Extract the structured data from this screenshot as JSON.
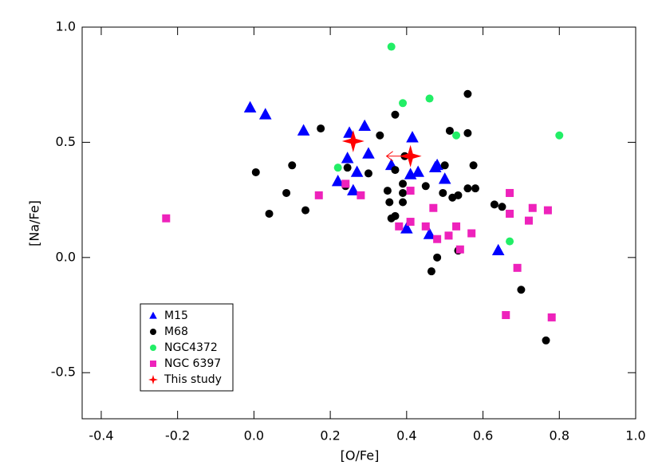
{
  "chart_data": {
    "type": "scatter",
    "x_label": "[O/Fe]",
    "y_label": "[Na/Fe]",
    "xlim": [
      -0.45,
      1.0
    ],
    "ylim": [
      -0.7,
      1.0
    ],
    "xticks": [
      -0.4,
      -0.2,
      {
        "value": 0,
        "label": "0.0"
      },
      0.2,
      0.4,
      0.6,
      0.8,
      {
        "value": 1,
        "label": "1.0"
      }
    ],
    "yticks": [
      -0.5,
      {
        "value": 0,
        "label": "0.0"
      },
      0.5,
      {
        "value": 1,
        "label": "1.0"
      }
    ],
    "legend": "lower-left",
    "series": [
      {
        "name": "M15",
        "color": "#0000ff",
        "marker": "triangle",
        "x": [
          -0.01,
          0.03,
          0.13,
          0.25,
          0.29,
          0.3,
          0.245,
          0.27,
          0.22,
          0.26,
          0.415,
          0.43,
          0.41,
          0.36,
          0.475,
          0.48,
          0.5,
          0.4,
          0.46,
          0.64
        ],
        "values": [
          0.65,
          0.62,
          0.55,
          0.54,
          0.57,
          0.45,
          0.43,
          0.37,
          0.33,
          0.29,
          0.52,
          0.37,
          0.36,
          0.4,
          0.39,
          0.4,
          0.34,
          0.125,
          0.1,
          0.03
        ]
      },
      {
        "name": "M68",
        "color": "#000000",
        "marker": "circle",
        "x": [
          0.005,
          0.04,
          0.1,
          0.085,
          0.135,
          0.175,
          0.245,
          0.24,
          0.3,
          0.33,
          0.37,
          0.37,
          0.35,
          0.355,
          0.36,
          0.39,
          0.39,
          0.39,
          0.37,
          0.395,
          0.45,
          0.5,
          0.495,
          0.513,
          0.535,
          0.52,
          0.56,
          0.56,
          0.56,
          0.575,
          0.58,
          0.48,
          0.465,
          0.535,
          0.63,
          0.65,
          0.7,
          0.765
        ],
        "values": [
          0.37,
          0.19,
          0.4,
          0.28,
          0.205,
          0.56,
          0.39,
          0.31,
          0.365,
          0.53,
          0.62,
          0.38,
          0.29,
          0.24,
          0.17,
          0.32,
          0.28,
          0.24,
          0.18,
          0.44,
          0.31,
          0.4,
          0.28,
          0.55,
          0.27,
          0.26,
          0.71,
          0.54,
          0.3,
          0.4,
          0.3,
          0.0,
          -0.06,
          0.03,
          0.23,
          0.22,
          -0.14,
          -0.36
        ]
      },
      {
        "name": "NGC4372",
        "color": "#22ee66",
        "marker": "circle",
        "x": [
          0.36,
          0.39,
          0.46,
          0.53,
          0.8,
          0.22,
          0.67
        ],
        "values": [
          0.915,
          0.67,
          0.69,
          0.53,
          0.53,
          0.39,
          0.07
        ]
      },
      {
        "name": "NGC 6397",
        "color": "#ee22bb",
        "marker": "square",
        "x": [
          -0.23,
          0.17,
          0.24,
          0.28,
          0.41,
          0.38,
          0.41,
          0.45,
          0.47,
          0.48,
          0.51,
          0.53,
          0.54,
          0.57,
          0.67,
          0.67,
          0.72,
          0.73,
          0.77,
          0.69,
          0.66,
          0.78
        ],
        "values": [
          0.17,
          0.27,
          0.32,
          0.27,
          0.29,
          0.135,
          0.155,
          0.135,
          0.215,
          0.08,
          0.095,
          0.135,
          0.035,
          0.105,
          0.28,
          0.19,
          0.16,
          0.215,
          0.205,
          -0.045,
          -0.25,
          -0.26
        ]
      },
      {
        "name": "This study",
        "color": "#ff0000",
        "marker": "star",
        "x": [
          0.26,
          0.41
        ],
        "values": [
          0.505,
          0.44
        ]
      }
    ]
  }
}
